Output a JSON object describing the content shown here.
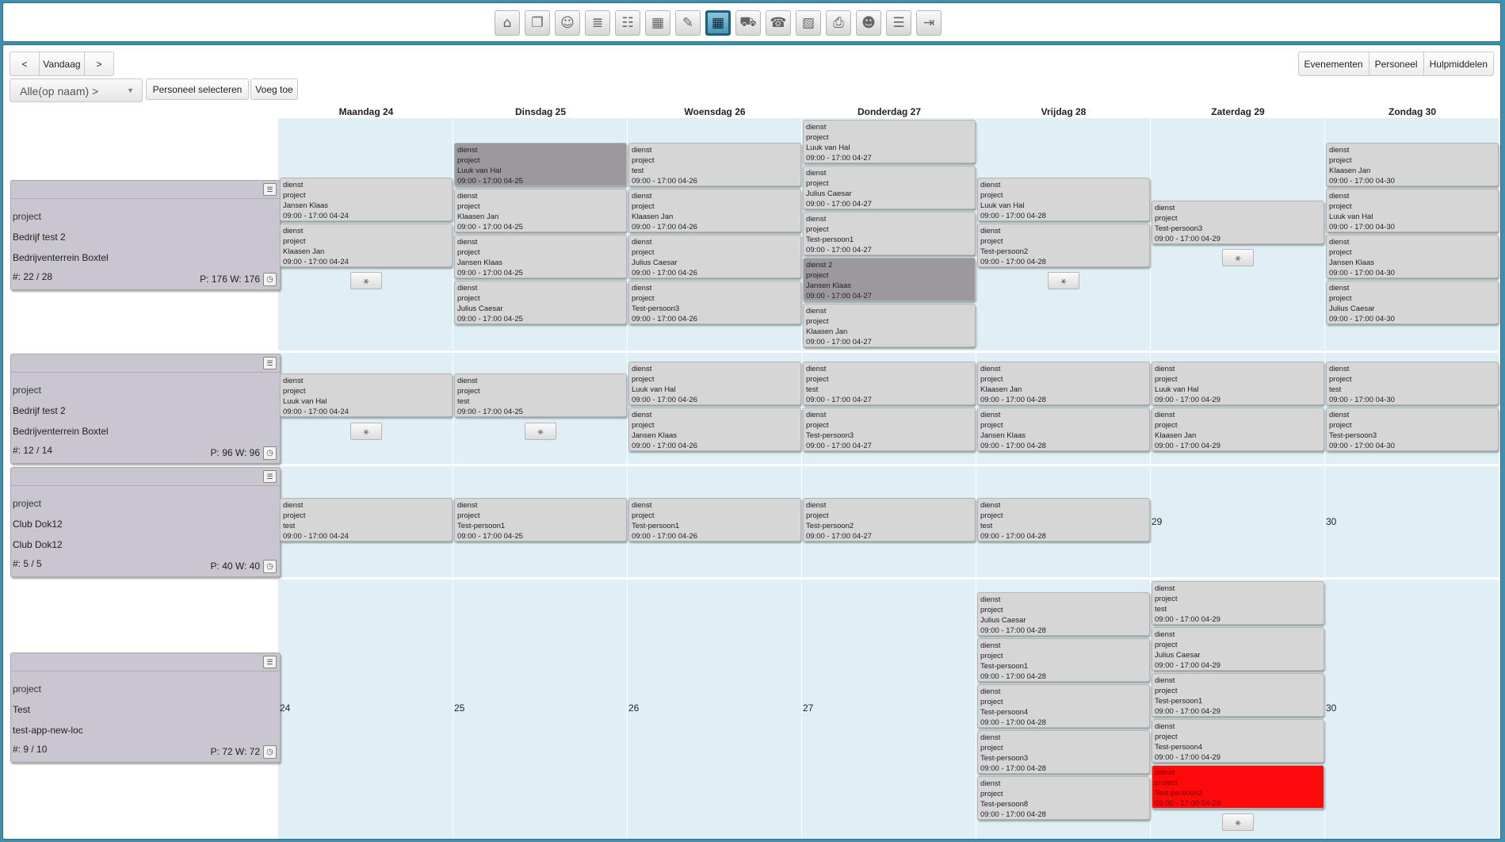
{
  "toolbar": {
    "icons": [
      "home-icon",
      "documents-icon",
      "contacts-icon",
      "forms-icon",
      "users-icon",
      "calendar-month-icon",
      "calendar-edit-icon",
      "calendar-week-icon",
      "truck-icon",
      "phone-icon",
      "image-icon",
      "print-icon",
      "people-icon",
      "settings-list-icon",
      "logout-icon"
    ],
    "glyphs": [
      "⌂",
      "❐",
      "☺",
      "≣",
      "☷",
      "▦",
      "✎",
      "▦",
      "⛟",
      "☎",
      "▨",
      "⎙",
      "☻",
      "☰",
      "⇥"
    ],
    "active_index": 7
  },
  "nav": {
    "prev": "<",
    "today": "Vandaag",
    "next": ">"
  },
  "views": [
    "Evenementen",
    "Personeel",
    "Hulpmiddelen"
  ],
  "filter": {
    "value": "Alle(op naam) >",
    "caret": "▼"
  },
  "buttons": {
    "select_staff": "Personeel selecteren",
    "add": "Voeg toe"
  },
  "days": [
    "Maandag 24",
    "Dinsdag 25",
    "Woensdag 26",
    "Donderdag 27",
    "Vrijdag 28",
    "Zaterdag 29",
    "Zondag 30"
  ],
  "locations": [
    {
      "type": "project",
      "name": "Bedrijf test 2",
      "place": "Bedrijventerrein Boxtel",
      "count": "#: 22 / 28",
      "pw": "P: 176 W: 176"
    },
    {
      "type": "project",
      "name": "Bedrijf test 2",
      "place": "Bedrijventerrein Boxtel",
      "count": "#: 12 / 14",
      "pw": "P: 96 W: 96"
    },
    {
      "type": "project",
      "name": "Club Dok12",
      "place": "Club Dok12",
      "count": "#: 5 / 5",
      "pw": "P: 40 W: 40"
    },
    {
      "type": "project",
      "name": "Test",
      "place": "test-app-new-loc",
      "count": "#: 9 / 10",
      "pw": "P: 72 W: 72"
    }
  ],
  "shifts": [
    {
      "row": 0,
      "day": 0,
      "slot": 0,
      "service": "dienst",
      "type": "project",
      "person": "Jansen Klaas",
      "time": "09:00 - 17:00 04-24"
    },
    {
      "row": 0,
      "day": 0,
      "slot": 1,
      "service": "dienst",
      "type": "project",
      "person": "Klaasen Jan",
      "time": "09:00 - 17:00 04-24"
    },
    {
      "row": 0,
      "day": 1,
      "slot": 0,
      "service": "dienst",
      "type": "project",
      "person": "Luuk van Hal",
      "time": "09:00 - 17:00 04-25",
      "style": "dark"
    },
    {
      "row": 0,
      "day": 1,
      "slot": 1,
      "service": "dienst",
      "type": "project",
      "person": "Klaasen Jan",
      "time": "09:00 - 17:00 04-25"
    },
    {
      "row": 0,
      "day": 1,
      "slot": 2,
      "service": "dienst",
      "type": "project",
      "person": "Jansen Klaas",
      "time": "09:00 - 17:00 04-25"
    },
    {
      "row": 0,
      "day": 1,
      "slot": 3,
      "service": "dienst",
      "type": "project",
      "person": "Julius Caesar",
      "time": "09:00 - 17:00 04-25"
    },
    {
      "row": 0,
      "day": 2,
      "slot": 0,
      "service": "dienst",
      "type": "project",
      "person": "test",
      "time": "09:00 - 17:00 04-26"
    },
    {
      "row": 0,
      "day": 2,
      "slot": 1,
      "service": "dienst",
      "type": "project",
      "person": "Klaasen Jan",
      "time": "09:00 - 17:00 04-26"
    },
    {
      "row": 0,
      "day": 2,
      "slot": 2,
      "service": "dienst",
      "type": "project",
      "person": "Julius Caesar",
      "time": "09:00 - 17:00 04-26"
    },
    {
      "row": 0,
      "day": 2,
      "slot": 3,
      "service": "dienst",
      "type": "project",
      "person": "Test-persoon3",
      "time": "09:00 - 17:00 04-26"
    },
    {
      "row": 0,
      "day": 3,
      "slot": 0,
      "service": "dienst",
      "type": "project",
      "person": "Luuk van Hal",
      "time": "09:00 - 17:00 04-27"
    },
    {
      "row": 0,
      "day": 3,
      "slot": 1,
      "service": "dienst",
      "type": "project",
      "person": "Julius Caesar",
      "time": "09:00 - 17:00 04-27"
    },
    {
      "row": 0,
      "day": 3,
      "slot": 2,
      "service": "dienst",
      "type": "project",
      "person": "Test-persoon1",
      "time": "09:00 - 17:00 04-27"
    },
    {
      "row": 0,
      "day": 3,
      "slot": 3,
      "service": "dienst 2",
      "type": "project",
      "person": "Jansen Klaas",
      "time": "09:00 - 17:00 04-27",
      "style": "dark"
    },
    {
      "row": 0,
      "day": 3,
      "slot": 4,
      "service": "dienst",
      "type": "project",
      "person": "Klaasen Jan",
      "time": "09:00 - 17:00 04-27"
    },
    {
      "row": 0,
      "day": 4,
      "slot": 0,
      "service": "dienst",
      "type": "project",
      "person": "Luuk van Hal",
      "time": "09:00 - 17:00 04-28"
    },
    {
      "row": 0,
      "day": 4,
      "slot": 1,
      "service": "dienst",
      "type": "project",
      "person": "Test-persoon2",
      "time": "09:00 - 17:00 04-28"
    },
    {
      "row": 0,
      "day": 5,
      "slot": 0,
      "service": "dienst",
      "type": "project",
      "person": "Test-persoon3",
      "time": "09:00 - 17:00 04-29"
    },
    {
      "row": 0,
      "day": 6,
      "slot": 0,
      "service": "dienst",
      "type": "project",
      "person": "Klaasen Jan",
      "time": "09:00 - 17:00 04-30"
    },
    {
      "row": 0,
      "day": 6,
      "slot": 1,
      "service": "dienst",
      "type": "project",
      "person": "Luuk van Hal",
      "time": "09:00 - 17:00 04-30"
    },
    {
      "row": 0,
      "day": 6,
      "slot": 2,
      "service": "dienst",
      "type": "project",
      "person": "Jansen Klaas",
      "time": "09:00 - 17:00 04-30"
    },
    {
      "row": 0,
      "day": 6,
      "slot": 3,
      "service": "dienst",
      "type": "project",
      "person": "Julius Caesar",
      "time": "09:00 - 17:00 04-30"
    },
    {
      "row": 1,
      "day": 0,
      "slot": 0,
      "service": "dienst",
      "type": "project",
      "person": "Luuk van Hal",
      "time": "09:00 - 17:00 04-24"
    },
    {
      "row": 1,
      "day": 1,
      "slot": 0,
      "service": "dienst",
      "type": "project",
      "person": "test",
      "time": "09:00 - 17:00 04-25"
    },
    {
      "row": 1,
      "day": 2,
      "slot": 0,
      "service": "dienst",
      "type": "project",
      "person": "Luuk van Hal",
      "time": "09:00 - 17:00 04-26"
    },
    {
      "row": 1,
      "day": 2,
      "slot": 1,
      "service": "dienst",
      "type": "project",
      "person": "Jansen Klaas",
      "time": "09:00 - 17:00 04-26"
    },
    {
      "row": 1,
      "day": 3,
      "slot": 0,
      "service": "dienst",
      "type": "project",
      "person": "test",
      "time": "09:00 - 17:00 04-27"
    },
    {
      "row": 1,
      "day": 3,
      "slot": 1,
      "service": "dienst",
      "type": "project",
      "person": "Test-persoon3",
      "time": "09:00 - 17:00 04-27"
    },
    {
      "row": 1,
      "day": 4,
      "slot": 0,
      "service": "dienst",
      "type": "project",
      "person": "Klaasen Jan",
      "time": "09:00 - 17:00 04-28"
    },
    {
      "row": 1,
      "day": 4,
      "slot": 1,
      "service": "dienst",
      "type": "project",
      "person": "Jansen Klaas",
      "time": "09:00 - 17:00 04-28"
    },
    {
      "row": 1,
      "day": 5,
      "slot": 0,
      "service": "dienst",
      "type": "project",
      "person": "Luuk van Hal",
      "time": "09:00 - 17:00 04-29"
    },
    {
      "row": 1,
      "day": 5,
      "slot": 1,
      "service": "dienst",
      "type": "project",
      "person": "Klaasen Jan",
      "time": "09:00 - 17:00 04-29"
    },
    {
      "row": 1,
      "day": 6,
      "slot": 0,
      "service": "dienst",
      "type": "project",
      "person": "test",
      "time": "09:00 - 17:00 04-30"
    },
    {
      "row": 1,
      "day": 6,
      "slot": 1,
      "service": "dienst",
      "type": "project",
      "person": "Test-persoon3",
      "time": "09:00 - 17:00 04-30"
    },
    {
      "row": 2,
      "day": 0,
      "slot": 0,
      "service": "dienst",
      "type": "project",
      "person": "test",
      "time": "09:00 - 17:00 04-24"
    },
    {
      "row": 2,
      "day": 1,
      "slot": 0,
      "service": "dienst",
      "type": "project",
      "person": "Test-persoon1",
      "time": "09:00 - 17:00 04-25"
    },
    {
      "row": 2,
      "day": 2,
      "slot": 0,
      "service": "dienst",
      "type": "project",
      "person": "Test-persoon1",
      "time": "09:00 - 17:00 04-26"
    },
    {
      "row": 2,
      "day": 3,
      "slot": 0,
      "service": "dienst",
      "type": "project",
      "person": "Test-persoon2",
      "time": "09:00 - 17:00 04-27"
    },
    {
      "row": 2,
      "day": 4,
      "slot": 0,
      "service": "dienst",
      "type": "project",
      "person": "test",
      "time": "09:00 - 17:00 04-28"
    },
    {
      "row": 3,
      "day": 4,
      "slot": 0,
      "service": "dienst",
      "type": "project",
      "person": "Julius Caesar",
      "time": "09:00 - 17:00 04-28"
    },
    {
      "row": 3,
      "day": 4,
      "slot": 1,
      "service": "dienst",
      "type": "project",
      "person": "Test-persoon1",
      "time": "09:00 - 17:00 04-28"
    },
    {
      "row": 3,
      "day": 4,
      "slot": 2,
      "service": "dienst",
      "type": "project",
      "person": "Test-persoon4",
      "time": "09:00 - 17:00 04-28"
    },
    {
      "row": 3,
      "day": 4,
      "slot": 3,
      "service": "dienst",
      "type": "project",
      "person": "Test-persoon3",
      "time": "09:00 - 17:00 04-28"
    },
    {
      "row": 3,
      "day": 4,
      "slot": 4,
      "service": "dienst",
      "type": "project",
      "person": "Test-persoon8",
      "time": "09:00 - 17:00 04-28"
    },
    {
      "row": 3,
      "day": 5,
      "slot": 0,
      "service": "dienst",
      "type": "project",
      "person": "test",
      "time": "09:00 - 17:00 04-29"
    },
    {
      "row": 3,
      "day": 5,
      "slot": 1,
      "service": "dienst",
      "type": "project",
      "person": "Julius Caesar",
      "time": "09:00 - 17:00 04-29"
    },
    {
      "row": 3,
      "day": 5,
      "slot": 2,
      "service": "dienst",
      "type": "project",
      "person": "Test-persoon1",
      "time": "09:00 - 17:00 04-29"
    },
    {
      "row": 3,
      "day": 5,
      "slot": 3,
      "service": "dienst",
      "type": "project",
      "person": "Test-persoon4",
      "time": "09:00 - 17:00 04-29"
    },
    {
      "row": 3,
      "day": 5,
      "slot": 4,
      "service": "dienst",
      "type": "project",
      "person": "Test-persoon2",
      "time": "09:00 - 17:00 04-29",
      "style": "red"
    }
  ],
  "add_buttons": [
    {
      "row": 0,
      "day": 0
    },
    {
      "row": 0,
      "day": 4
    },
    {
      "row": 0,
      "day": 5
    },
    {
      "row": 1,
      "day": 0
    },
    {
      "row": 1,
      "day": 1
    },
    {
      "row": 3,
      "day": 5
    }
  ],
  "add_glyph": "⚹",
  "day_numbers": [
    {
      "row": 2,
      "day": 5,
      "label": "29"
    },
    {
      "row": 2,
      "day": 6,
      "label": "30"
    },
    {
      "row": 3,
      "day": 0,
      "label": "24"
    },
    {
      "row": 3,
      "day": 1,
      "label": "25"
    },
    {
      "row": 3,
      "day": 2,
      "label": "26"
    },
    {
      "row": 3,
      "day": 3,
      "label": "27"
    },
    {
      "row": 3,
      "day": 6,
      "label": "30"
    }
  ],
  "location_menu_glyph": "☰",
  "location_clock_glyph": "◷",
  "colors": {
    "grid_background": "#dfeff5",
    "card": "#d6d6d6",
    "card_dark": "#9b999e",
    "card_alert": "#ff0a0a",
    "location": "#c9c6cf",
    "frame": "#3f8fad"
  }
}
